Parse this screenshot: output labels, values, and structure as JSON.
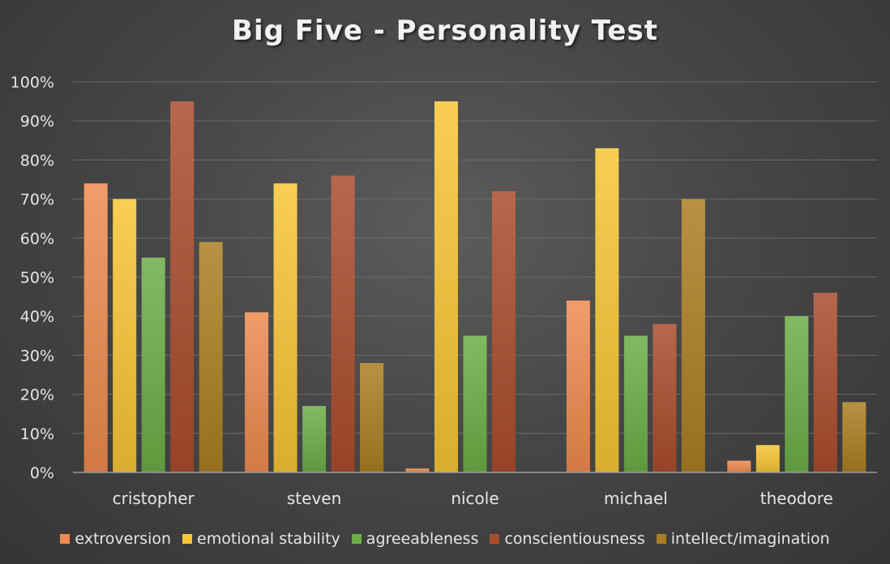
{
  "chart_data": {
    "type": "bar",
    "title": "Big Five - Personality Test",
    "categories": [
      "cristopher",
      "steven",
      "nicole",
      "michael",
      "theodore"
    ],
    "series": [
      {
        "name": "extroversion",
        "values": [
          74,
          41,
          1,
          44,
          3
        ],
        "color": "#ef8a4e"
      },
      {
        "name": "emotional stability",
        "values": [
          70,
          74,
          95,
          83,
          7
        ],
        "color": "#f7c535"
      },
      {
        "name": "agreeableness",
        "values": [
          55,
          17,
          35,
          35,
          40
        ],
        "color": "#6bae46"
      },
      {
        "name": "conscientiousness",
        "values": [
          95,
          76,
          72,
          38,
          46
        ],
        "color": "#aa4c2c"
      },
      {
        "name": "intellect/imagination",
        "values": [
          59,
          28,
          0,
          70,
          18
        ],
        "color": "#ab7e23"
      }
    ],
    "y_ticks": [
      "0%",
      "10%",
      "20%",
      "30%",
      "40%",
      "50%",
      "60%",
      "70%",
      "80%",
      "90%",
      "100%"
    ],
    "ylim": [
      0,
      100
    ],
    "y_format": "percent",
    "grid": true,
    "legend_position": "bottom"
  }
}
